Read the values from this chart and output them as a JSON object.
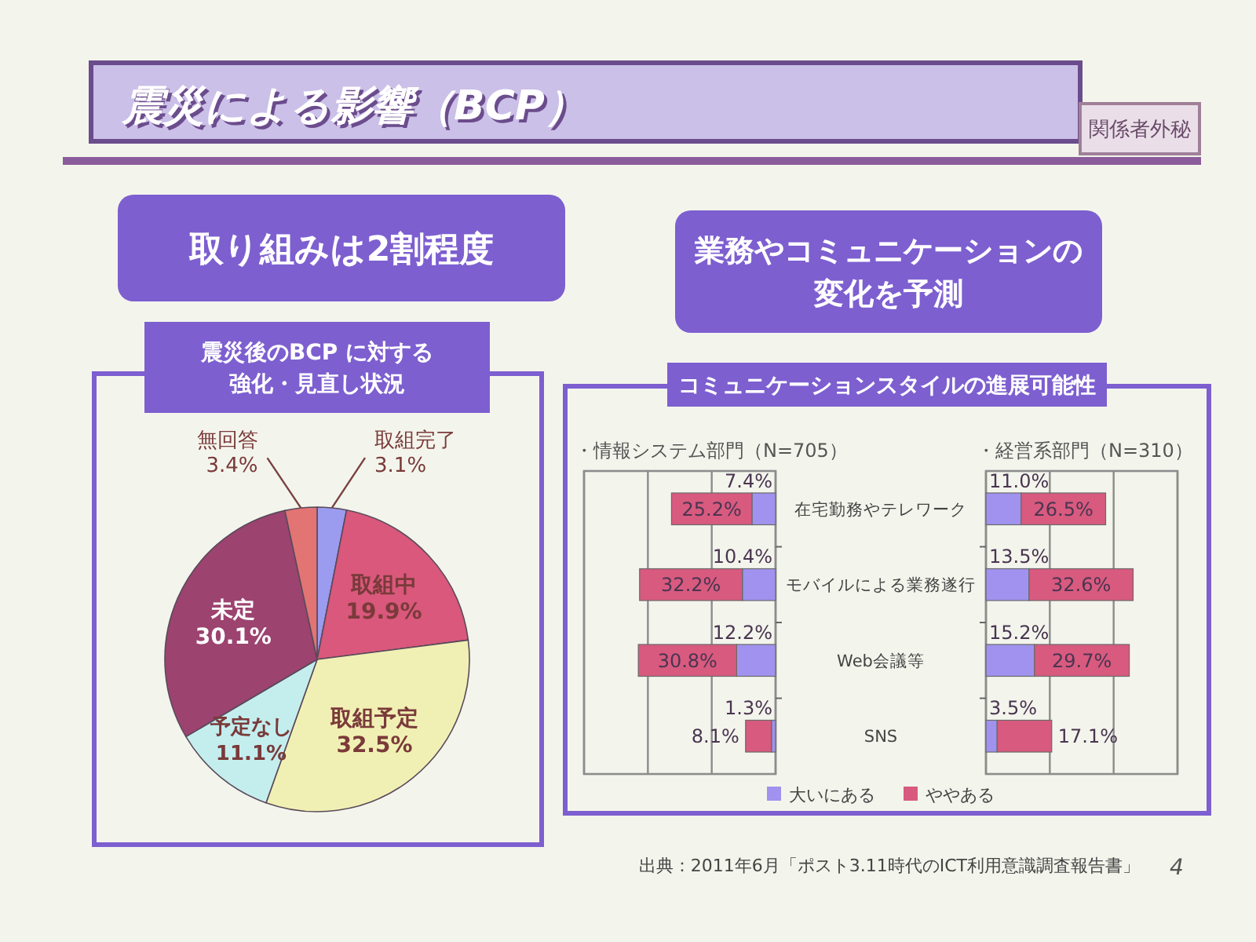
{
  "chart_data": [
    {
      "type": "other",
      "title": "震災による影響（BCP）",
      "annotations": [
        "関係者外秘",
        "取り組みは2割程度",
        "業務やコミュニケーションの変化を予測",
        "コミュニケーションスタイルの進展可能性",
        "出典：2011年6月「ポスト3.11時代のICT利用意識調査報告書」",
        "4"
      ]
    },
    {
      "type": "pie",
      "title": "震災後のBCP に対する強化・見直し状況",
      "categories": [
        "取組完了",
        "取組中",
        "取組予定",
        "予定なし",
        "未定",
        "無回答"
      ],
      "values": [
        3.1,
        19.9,
        32.5,
        11.1,
        30.1,
        3.4
      ],
      "value_labels": [
        "3.1%",
        "19.9%",
        "32.5%",
        "11.1%",
        "30.1%",
        "3.4%"
      ],
      "colors": [
        "#9b9bef",
        "#d9587c",
        "#f1f0b4",
        "#c4eeee",
        "#9c4370",
        "#e27474"
      ]
    },
    {
      "type": "bar",
      "orientation": "horizontal",
      "stacked": true,
      "title": "・情報システム部門（N=705）",
      "categories": [
        "在宅勤務やテレワーク",
        "モバイルによる業務遂行",
        "Web会議等",
        "SNS"
      ],
      "series": [
        {
          "name": "大いにある",
          "color": "#a092ee",
          "values": [
            7.4,
            10.4,
            12.2,
            1.3
          ],
          "value_labels": [
            "7.4%",
            "10.4%",
            "12.2%",
            "1.3%"
          ]
        },
        {
          "name": "ややある",
          "color": "#d85a7f",
          "values": [
            25.2,
            32.2,
            30.8,
            8.1
          ],
          "value_labels": [
            "25.2%",
            "32.2%",
            "30.8%",
            "8.1%"
          ]
        }
      ],
      "xlim": [
        60,
        0
      ],
      "xticks": [
        {
          "value": 0,
          "label": null
        },
        {
          "value": 20,
          "label": null
        },
        {
          "value": 40,
          "label": null
        },
        {
          "value": 60,
          "label": null
        }
      ],
      "grid": "x",
      "legend": "bottom"
    },
    {
      "type": "bar",
      "orientation": "horizontal",
      "stacked": true,
      "title": "・経営系部門（N=310）",
      "categories": [
        null,
        null,
        null,
        null
      ],
      "series": [
        {
          "color": "#a092ee",
          "values": [
            11.0,
            13.5,
            15.2,
            3.5
          ],
          "value_labels": [
            "11.0%",
            "13.5%",
            "15.2%",
            "3.5%"
          ]
        },
        {
          "color": "#d85a7f",
          "values": [
            26.5,
            32.6,
            29.7,
            17.1
          ],
          "value_labels": [
            "26.5%",
            "32.6%",
            "29.7%",
            "17.1%"
          ]
        }
      ],
      "xlim": [
        0,
        60
      ],
      "xticks": [
        {
          "value": 0,
          "label": null
        },
        {
          "value": 20,
          "label": null
        },
        {
          "value": 40,
          "label": null
        },
        {
          "value": 60,
          "label": null
        }
      ],
      "grid": "x"
    }
  ]
}
